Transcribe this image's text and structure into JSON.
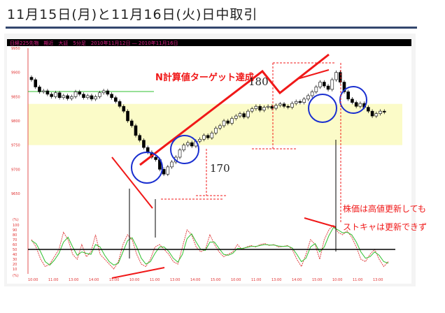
{
  "title": "11月15日(月)と11月16日(火)日中取引",
  "chart_header": "日経225先物　期近　大証　5分足　2010年11月12日 ― 2010年11月16日",
  "annotations": {
    "target": "N計算値ターゲット達成",
    "n180": "180",
    "n170": "170",
    "note1": "株価は高値更新しても",
    "note2": "ストキャは更新できず"
  },
  "colors": {
    "annotation": "#f01818",
    "circle": "#1a2fd0",
    "band": "#fbfbc8",
    "stoch_k": "#e04040",
    "stoch_d": "#30c030"
  },
  "chart_data": [
    {
      "type": "candlestick",
      "ylim": [
        9650,
        9950
      ],
      "yticks": [
        "9950",
        "9900",
        "9850",
        "9800",
        "9750",
        "9700",
        "9650"
      ],
      "close": [
        9885,
        9870,
        9860,
        9862,
        9855,
        9850,
        9858,
        9848,
        9852,
        9846,
        9850,
        9860,
        9855,
        9848,
        9852,
        9845,
        9850,
        9858,
        9862,
        9855,
        9848,
        9840,
        9830,
        9820,
        9800,
        9790,
        9770,
        9760,
        9745,
        9735,
        9725,
        9720,
        9700,
        9690,
        9705,
        9715,
        9725,
        9740,
        9750,
        9755,
        9748,
        9758,
        9762,
        9770,
        9765,
        9775,
        9785,
        9790,
        9800,
        9795,
        9805,
        9810,
        9815,
        9808,
        9820,
        9825,
        9830,
        9822,
        9828,
        9830,
        9826,
        9832,
        9835,
        9830,
        9828,
        9836,
        9840,
        9838,
        9845,
        9852,
        9860,
        9870,
        9880,
        9872,
        9865,
        9885,
        9900,
        9880,
        9860,
        9845,
        9838,
        9830,
        9836,
        9828,
        9820,
        9810,
        9815,
        9820,
        9818
      ],
      "band": [
        9750,
        9835
      ],
      "xticks": [
        "10:00",
        "11:00",
        "13:00",
        "14:00",
        "15:00",
        "10:00",
        "11:00",
        "13:00",
        "14:00",
        "15:00",
        "10:00",
        "11:00",
        "13:00",
        "14:00",
        "15:00",
        "10:00",
        "11:00",
        "13:00"
      ]
    },
    {
      "type": "line",
      "ylim": [
        0,
        100
      ],
      "yticks": [
        "100",
        "90",
        "80",
        "70",
        "60",
        "50",
        "40",
        "30",
        "20",
        "10"
      ],
      "ylabel_top": "(%)",
      "ylabel_bottom": "(%)",
      "midline": 50,
      "series": [
        {
          "values": [
            70,
            55,
            30,
            15,
            20,
            35,
            50,
            85,
            70,
            40,
            30,
            60,
            35,
            45,
            80,
            40,
            30,
            20,
            10,
            25,
            60,
            80,
            70,
            40,
            20,
            15,
            30,
            55,
            60,
            50,
            40,
            25,
            20,
            55,
            90,
            80,
            55,
            45,
            50,
            80,
            60,
            45,
            35,
            40,
            45,
            60,
            50,
            55,
            58,
            55,
            60,
            62,
            58,
            60,
            55,
            56,
            58,
            50,
            30,
            15,
            40,
            70,
            60,
            30,
            70,
            90,
            100,
            85,
            80,
            88,
            75,
            55,
            30,
            25,
            40,
            50,
            30,
            15,
            25
          ]
        },
        {
          "values": [
            68,
            62,
            45,
            25,
            18,
            28,
            42,
            65,
            75,
            55,
            38,
            45,
            42,
            40,
            60,
            55,
            38,
            25,
            18,
            22,
            45,
            68,
            74,
            55,
            32,
            20,
            25,
            42,
            55,
            55,
            46,
            32,
            24,
            40,
            72,
            82,
            65,
            50,
            48,
            65,
            65,
            52,
            40,
            38,
            42,
            52,
            52,
            54,
            56,
            56,
            58,
            60,
            59,
            59,
            57,
            56,
            57,
            53,
            40,
            25,
            32,
            55,
            62,
            45,
            55,
            78,
            95,
            90,
            84,
            85,
            80,
            65,
            45,
            32,
            35,
            45,
            38,
            25,
            22
          ]
        }
      ]
    }
  ]
}
